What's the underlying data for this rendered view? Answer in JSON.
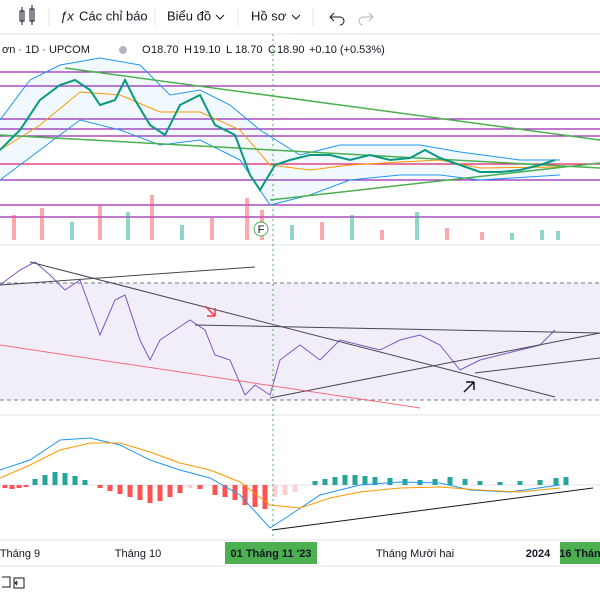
{
  "toolbar": {
    "indicators": "Các chỉ báo",
    "chart": "Biểu đồ",
    "profile": "Hồ sơ"
  },
  "legend": {
    "symbol": "ơn · 1D · UPCOM",
    "items": [
      {
        "label": "O",
        "value": "18.70"
      },
      {
        "label": "H",
        "value": "19.10"
      },
      {
        "label": "L",
        "value": "18.70"
      },
      {
        "label": "C",
        "value": "18.90"
      }
    ],
    "change": "+0.10 (+0.53%)"
  },
  "event_marker": "F",
  "time_axis": {
    "labels": [
      "Tháng 9",
      "Tháng 10",
      "01 Tháng 11 '23",
      "Tháng Mười hai",
      "2024",
      "16 Thán"
    ]
  }
}
